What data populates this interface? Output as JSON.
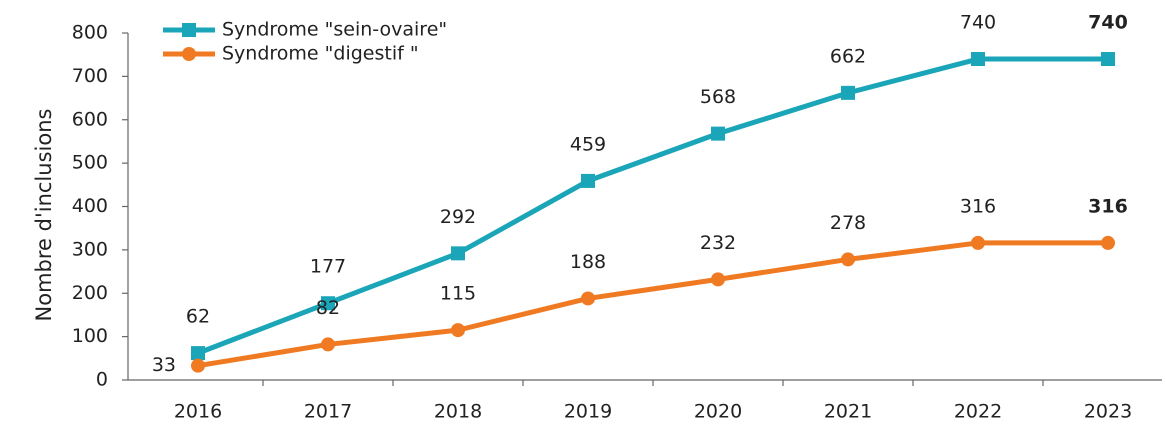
{
  "chart_data": {
    "type": "line",
    "y_label": "Nombre d'inclusions",
    "categories": [
      "2016",
      "2017",
      "2018",
      "2019",
      "2020",
      "2021",
      "2022",
      "2023"
    ],
    "series": [
      {
        "name": "Syndrome \"sein-ovaire\"",
        "color": "#1aa5b8",
        "marker": "square",
        "values": [
          62,
          177,
          292,
          459,
          568,
          662,
          740,
          740
        ]
      },
      {
        "name": "Syndrome \"digestif \"",
        "color": "#f07a22",
        "marker": "circle",
        "values": [
          33,
          82,
          115,
          188,
          232,
          278,
          316,
          316
        ]
      }
    ],
    "ylim": [
      0,
      800
    ],
    "yticks": [
      0,
      100,
      200,
      300,
      400,
      500,
      600,
      700,
      800
    ],
    "legend": "top-left"
  }
}
